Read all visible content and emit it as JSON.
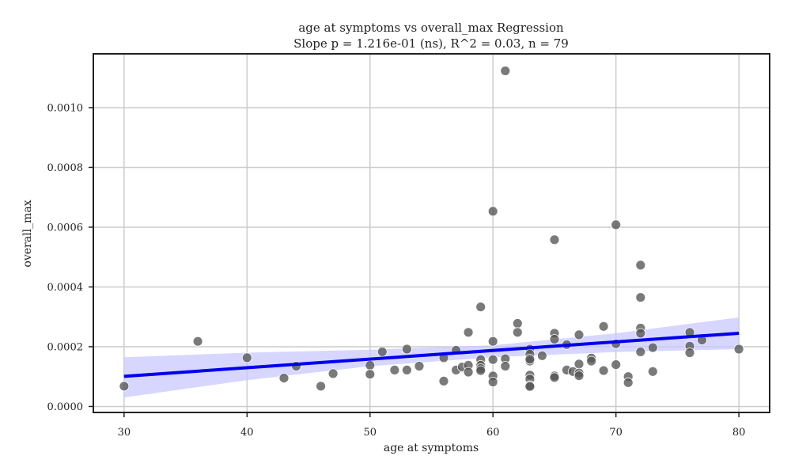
{
  "chart_data": {
    "type": "scatter",
    "title": "age at symptoms vs overall_max Regression",
    "subtitle": "Slope p = 1.216e-01 (ns), R^2 = 0.03, n = 79",
    "xlabel": "age at symptoms",
    "ylabel": "overall_max",
    "xlim": [
      27.5,
      82.5
    ],
    "ylim": [
      -2e-05,
      0.00118
    ],
    "xticks": [
      30,
      40,
      50,
      60,
      70,
      80
    ],
    "xtick_labels": [
      "30",
      "40",
      "50",
      "60",
      "70",
      "80"
    ],
    "yticks": [
      0,
      0.0002,
      0.0004,
      0.0006,
      0.0008,
      0.001
    ],
    "ytick_labels": [
      "0.0000",
      "0.0002",
      "0.0004",
      "0.0006",
      "0.0008",
      "0.0010"
    ],
    "grid": true,
    "point_color": "#555555",
    "line_color": "#0000ee",
    "band_color": "#c8c8ff",
    "points": [
      [
        30,
        6.8e-05
      ],
      [
        36,
        0.000218
      ],
      [
        40,
        0.000163
      ],
      [
        43,
        9.5e-05
      ],
      [
        44,
        0.000135
      ],
      [
        46,
        6.8e-05
      ],
      [
        47,
        0.00011
      ],
      [
        50,
        0.000138
      ],
      [
        50,
        0.000108
      ],
      [
        51,
        0.000183
      ],
      [
        52,
        0.000122
      ],
      [
        53,
        0.000192
      ],
      [
        53,
        0.000122
      ],
      [
        54,
        0.000135
      ],
      [
        56,
        0.000163
      ],
      [
        56,
        8.5e-05
      ],
      [
        57,
        0.000188
      ],
      [
        57,
        0.000122
      ],
      [
        57.5,
        0.000132
      ],
      [
        58,
        0.000138
      ],
      [
        58,
        0.000115
      ],
      [
        58,
        0.000248
      ],
      [
        59,
        0.000333
      ],
      [
        59,
        0.000157
      ],
      [
        59,
        0.000138
      ],
      [
        59,
        0.000127
      ],
      [
        59,
        0.00012
      ],
      [
        60,
        0.000653
      ],
      [
        60,
        0.000218
      ],
      [
        60,
        0.000157
      ],
      [
        60,
        0.000102
      ],
      [
        60,
        8.2e-05
      ],
      [
        61,
        0.001123
      ],
      [
        61,
        0.00016
      ],
      [
        61,
        0.000135
      ],
      [
        62,
        0.000278
      ],
      [
        62,
        0.000248
      ],
      [
        63,
        0.000192
      ],
      [
        63,
        0.000175
      ],
      [
        63,
        0.000152
      ],
      [
        63,
        0.000105
      ],
      [
        63,
        9.2e-05
      ],
      [
        63,
        7e-05
      ],
      [
        63,
        6.7e-05
      ],
      [
        64,
        0.00017
      ],
      [
        65,
        0.000558
      ],
      [
        65,
        0.000245
      ],
      [
        65,
        0.000225
      ],
      [
        65,
        0.000102
      ],
      [
        65,
        9.7e-05
      ],
      [
        66,
        0.000207
      ],
      [
        66,
        0.000122
      ],
      [
        66.5,
        0.000117
      ],
      [
        67,
        0.00024
      ],
      [
        67,
        0.000142
      ],
      [
        67,
        0.000112
      ],
      [
        67,
        0.000103
      ],
      [
        68,
        0.000162
      ],
      [
        68,
        0.000152
      ],
      [
        69,
        0.000268
      ],
      [
        69,
        0.00012
      ],
      [
        70,
        0.000608
      ],
      [
        70,
        0.00021
      ],
      [
        70,
        0.00014
      ],
      [
        71,
        0.0001
      ],
      [
        71,
        8e-05
      ],
      [
        72,
        0.000473
      ],
      [
        72,
        0.000365
      ],
      [
        72,
        0.000262
      ],
      [
        72,
        0.000245
      ],
      [
        72,
        0.000183
      ],
      [
        73,
        0.000197
      ],
      [
        73,
        0.000117
      ],
      [
        76,
        0.000248
      ],
      [
        76,
        0.000202
      ],
      [
        76,
        0.00018
      ],
      [
        77,
        0.000222
      ],
      [
        80,
        0.000192
      ],
      [
        63,
        0.000158
      ]
    ],
    "regression": {
      "x": [
        30,
        80
      ],
      "y": [
        0.000101,
        0.000245
      ]
    },
    "confidence_band": {
      "x": [
        30,
        40,
        50,
        60,
        70,
        80
      ],
      "lower": [
        3e-05,
        8.8e-05,
        0.000135,
        0.000165,
        0.000182,
        0.000192
      ],
      "upper": [
        0.000165,
        0.00018,
        0.00019,
        0.000205,
        0.000245,
        0.000298
      ]
    }
  }
}
